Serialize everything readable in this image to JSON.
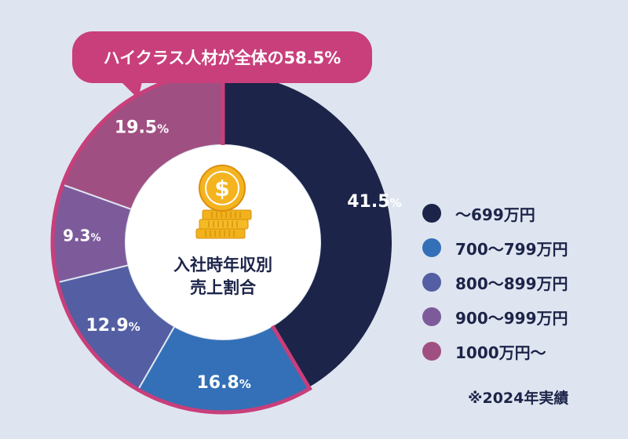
{
  "chart_data": {
    "type": "pie",
    "variant": "donut",
    "title": "入社時年収別 売上割合",
    "center_title_lines": [
      "入社時年収別",
      "売上割合"
    ],
    "callout": "ハイクラス人材が全体の58.5%",
    "callout_value": 58.5,
    "unit": "%",
    "slices": [
      {
        "name": "〜699万円",
        "value": 41.5,
        "value_text": "41.5",
        "color": "#1c2449"
      },
      {
        "name": "700〜799万円",
        "value": 16.8,
        "value_text": "16.8",
        "color": "#3370b7"
      },
      {
        "name": "800〜899万円",
        "value": 12.9,
        "value_text": "12.9",
        "color": "#535ea3"
      },
      {
        "name": "900〜999万円",
        "value": 9.3,
        "value_text": "9.3",
        "color": "#7d5b9b"
      },
      {
        "name": "1000万円〜",
        "value": 19.5,
        "value_text": "19.5",
        "color": "#a04f82"
      }
    ],
    "highlight_color": "#c83f7b",
    "footnote": "※2024年実績"
  }
}
